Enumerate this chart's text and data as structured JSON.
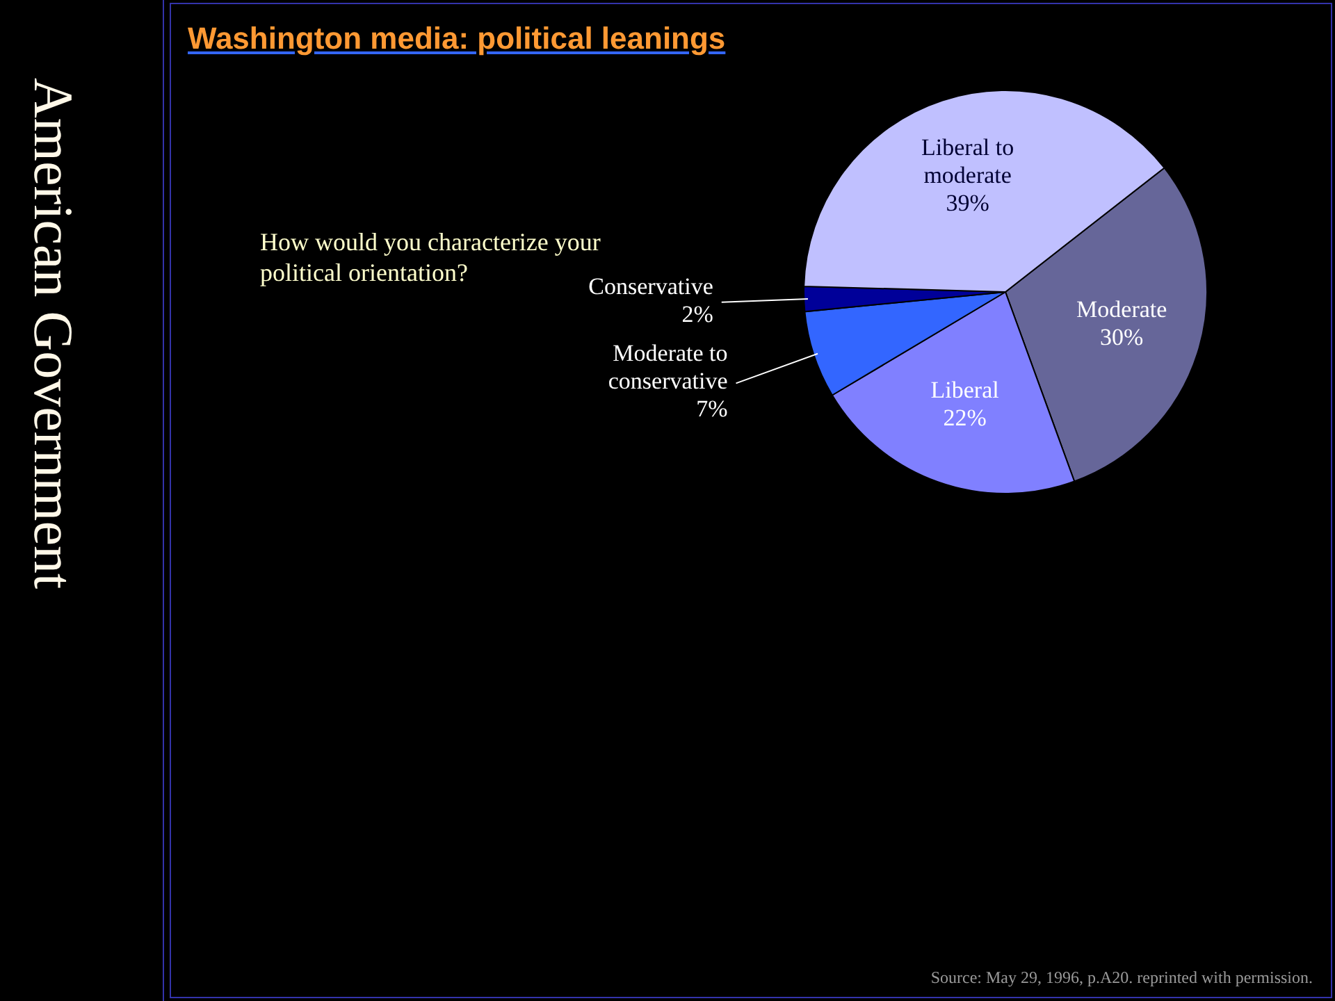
{
  "chart_data": {
    "type": "pie",
    "title": "Washington media: political leanings",
    "categories": [
      "Moderate",
      "Liberal",
      "Moderate to conservative",
      "Conservative",
      "Liberal to moderate"
    ],
    "values": [
      30,
      22,
      7,
      2,
      39
    ],
    "value_labels": [
      "30%",
      "22%",
      "7%",
      "2%",
      "39%"
    ],
    "colors": [
      "#666699",
      "#8080ff",
      "#3366ff",
      "#000099",
      "#c0c0ff"
    ],
    "annotations": [
      "How would you characterize your political orientation?",
      "American Government",
      "Source: May 29, 1996, p.A20. reprinted with permission."
    ]
  }
}
